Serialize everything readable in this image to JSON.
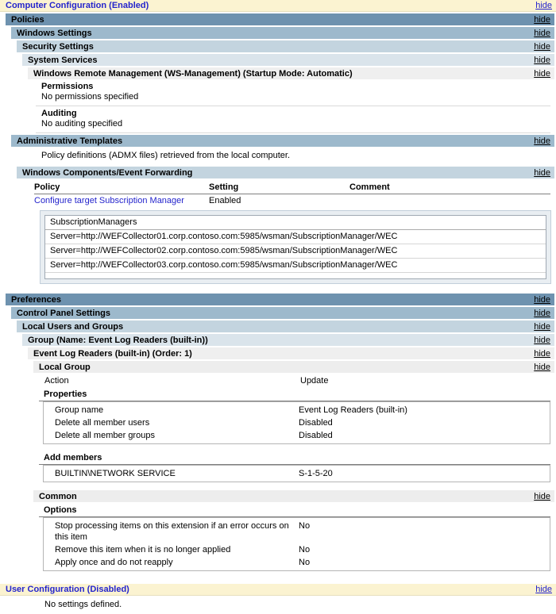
{
  "labels": {
    "hide": "hide"
  },
  "colors": {
    "top_section_bg": "#FBF3D1",
    "top_section_text": "#2424CC",
    "link_blue": "#2424CC",
    "bar_level1": "#6E92AF",
    "bar_level2": "#9DB9CC",
    "bar_level3": "#C3D4DF",
    "bar_level4": "#DAE4EB",
    "bar_level5": "#EFEFEF",
    "bar_level6": "#EDEDED",
    "detail_wrapper_bg": "#E9EEF2"
  },
  "computer_config": {
    "title": "Computer Configuration (Enabled)",
    "policies": {
      "title": "Policies",
      "windows_settings": {
        "title": "Windows Settings",
        "security_settings": {
          "title": "Security Settings",
          "system_services": {
            "title": "System Services",
            "wrm": {
              "title": "Windows Remote Management (WS-Management) (Startup Mode: Automatic)",
              "permissions_label": "Permissions",
              "permissions_value": "No permissions specified",
              "auditing_label": "Auditing",
              "auditing_value": "No auditing specified"
            }
          }
        }
      },
      "admin_templates": {
        "title": "Administrative Templates",
        "note": "Policy definitions (ADMX files) retrieved from the local computer.",
        "wef": {
          "title": "Windows Components/Event Forwarding",
          "table": {
            "headers": [
              "Policy",
              "Setting",
              "Comment"
            ],
            "row": {
              "policy": "Configure target Subscription Manager",
              "setting": "Enabled",
              "comment": ""
            }
          },
          "detail": {
            "header": "SubscriptionManagers",
            "rows": [
              "Server=http://WEFCollector01.corp.contoso.com:5985/wsman/SubscriptionManager/WEC",
              "Server=http://WEFCollector02.corp.contoso.com:5985/wsman/SubscriptionManager/WEC",
              "Server=http://WEFCollector03.corp.contoso.com:5985/wsman/SubscriptionManager/WEC"
            ]
          }
        }
      }
    },
    "preferences": {
      "title": "Preferences",
      "control_panel": {
        "title": "Control Panel Settings",
        "local_users_groups": {
          "title": "Local Users and Groups",
          "group": {
            "title": "Group (Name: Event Log Readers (built-in))",
            "item": {
              "title": "Event Log Readers (built-in) (Order: 1)",
              "local_group": {
                "title": "Local Group",
                "action_label": "Action",
                "action_value": "Update",
                "properties_label": "Properties",
                "properties": [
                  {
                    "label": "Group name",
                    "value": "Event Log Readers (built-in)"
                  },
                  {
                    "label": "Delete all member users",
                    "value": "Disabled"
                  },
                  {
                    "label": "Delete all member groups",
                    "value": "Disabled"
                  }
                ],
                "add_members_label": "Add members",
                "members": [
                  {
                    "name": "BUILTIN\\NETWORK SERVICE",
                    "sid": "S-1-5-20"
                  }
                ]
              },
              "common": {
                "title": "Common",
                "options_label": "Options",
                "options": [
                  {
                    "label": "Stop processing items on this extension if an error occurs on this item",
                    "value": "No"
                  },
                  {
                    "label": "Remove this item when it is no longer applied",
                    "value": "No"
                  },
                  {
                    "label": "Apply once and do not reapply",
                    "value": "No"
                  }
                ]
              }
            }
          }
        }
      }
    }
  },
  "user_config": {
    "title": "User Configuration (Disabled)",
    "note": "No settings defined."
  }
}
